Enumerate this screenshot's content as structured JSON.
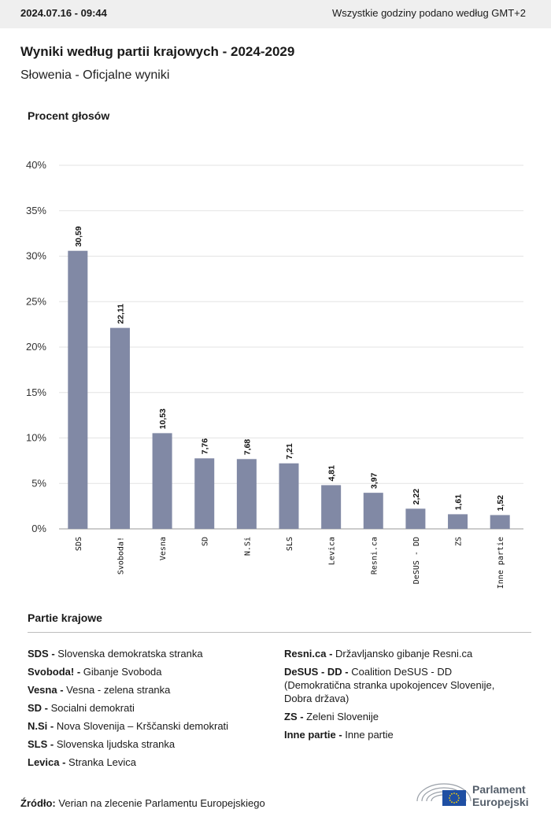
{
  "header": {
    "timestamp": "2024.07.16 - 09:44",
    "timezone_note": "Wszystkie godziny podano według GMT+2"
  },
  "title": "Wyniki według partii krajowych - 2024-2029",
  "subtitle": "Słowenia - Oficjalne wyniki",
  "chart_data": {
    "type": "bar",
    "ylabel": "Procent głosów",
    "ylim": [
      0,
      40
    ],
    "yticks": [
      "0%",
      "5%",
      "10%",
      "15%",
      "20%",
      "25%",
      "30%",
      "35%",
      "40%"
    ],
    "grid": true,
    "bar_color": "#8189a5",
    "categories": [
      "SDS",
      "Svoboda!",
      "Vesna",
      "SD",
      "N.Si",
      "SLS",
      "Levica",
      "Resni.ca",
      "DeSUS - DD",
      "ZS",
      "Inne partie"
    ],
    "values": [
      30.59,
      22.11,
      10.53,
      7.76,
      7.68,
      7.21,
      4.81,
      3.97,
      2.22,
      1.61,
      1.52
    ],
    "value_labels": [
      "30,59",
      "22,11",
      "10,53",
      "7,76",
      "7,68",
      "7,21",
      "4,81",
      "3,97",
      "2,22",
      "1,61",
      "1,52"
    ]
  },
  "legend": {
    "title": "Partie krajowe",
    "left": [
      {
        "abbr": "SDS -",
        "name": "Slovenska demokratska stranka"
      },
      {
        "abbr": "Svoboda! -",
        "name": "Gibanje Svoboda"
      },
      {
        "abbr": "Vesna -",
        "name": "Vesna - zelena stranka"
      },
      {
        "abbr": "SD -",
        "name": "Socialni demokrati"
      },
      {
        "abbr": "N.Si -",
        "name": "Nova Slovenija – Krščanski demokrati"
      },
      {
        "abbr": "SLS -",
        "name": "Slovenska ljudska stranka"
      },
      {
        "abbr": "Levica -",
        "name": "Stranka Levica"
      }
    ],
    "right": [
      {
        "abbr": "Resni.ca -",
        "name": "Državljansko gibanje Resni.ca"
      },
      {
        "abbr": "DeSUS - DD -",
        "name": "Coalition DeSUS - DD (Demokratična stranka upokojencev Slovenije, Dobra država)"
      },
      {
        "abbr": "ZS -",
        "name": "Zeleni Slovenije"
      },
      {
        "abbr": "Inne partie -",
        "name": "Inne partie"
      }
    ]
  },
  "source": {
    "label": "Źródło:",
    "text": "Verian na zlecenie Parlamentu Europejskiego"
  },
  "logo": {
    "line1": "Parlament",
    "line2": "Europejski",
    "flag_color": "#1f4fa3",
    "star_color": "#ffd400"
  }
}
